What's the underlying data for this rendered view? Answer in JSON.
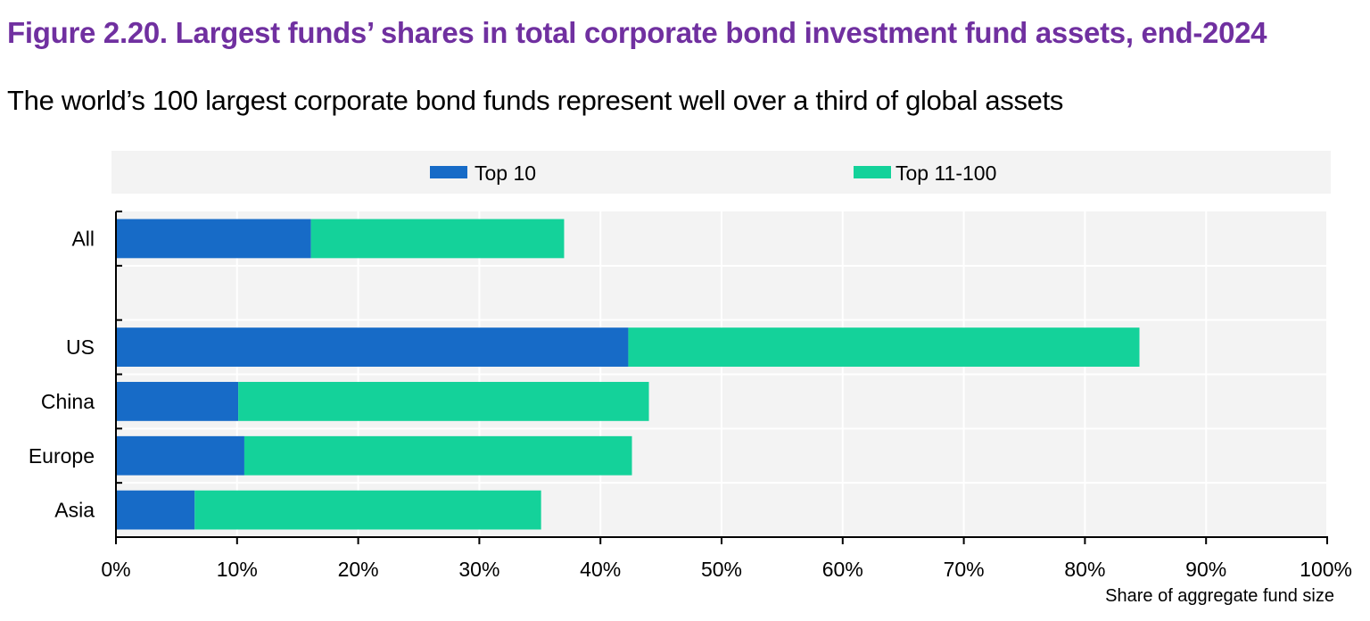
{
  "title": "Figure 2.20. Largest funds’ shares in total corporate bond investment fund assets, end-2024",
  "subtitle": "The world’s 100 largest corporate bond funds represent well over a third of global assets",
  "colors": {
    "top10": "#176bc7",
    "top11_100": "#14d29a",
    "title": "#7030a0",
    "plot_bg": "#f3f3f3"
  },
  "chart_data": {
    "type": "bar",
    "orientation": "horizontal",
    "stacked": true,
    "categories": [
      "All",
      "",
      "US",
      "China",
      "Europe",
      "Asia"
    ],
    "series": [
      {
        "name": "Top 10",
        "values": [
          16.1,
          null,
          42.3,
          10.1,
          10.6,
          6.5
        ]
      },
      {
        "name": "Top 11-100",
        "values": [
          20.9,
          null,
          42.2,
          33.9,
          32.0,
          28.6
        ]
      }
    ],
    "xlim": [
      0,
      100
    ],
    "xticks": [
      "0%",
      "10%",
      "20%",
      "30%",
      "40%",
      "50%",
      "60%",
      "70%",
      "80%",
      "90%",
      "100%"
    ],
    "xlabel": "Share of aggregate fund size",
    "grid": true,
    "legend": "top"
  }
}
